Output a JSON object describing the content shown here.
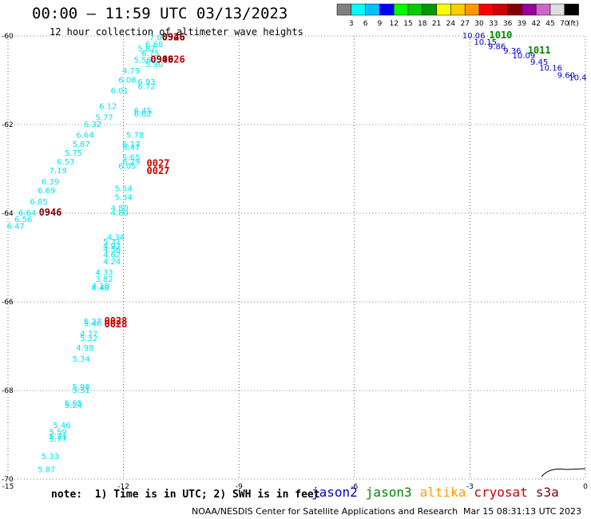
{
  "colorbar": {
    "colors": [
      "#808080",
      "#00ffff",
      "#00bfff",
      "#0000ff",
      "#00ff00",
      "#00cc00",
      "#009900",
      "#ffff00",
      "#ffcc00",
      "#ff9900",
      "#ff0000",
      "#cc0000",
      "#800000",
      "#990099",
      "#cc66cc",
      "#dddddd",
      "#000000"
    ],
    "ticks": [
      "3",
      "6",
      "9",
      "12",
      "15",
      "18",
      "21",
      "24",
      "27",
      "30",
      "33",
      "36",
      "39",
      "42",
      "45",
      "70"
    ],
    "unit": "(ft)"
  },
  "chart_data": {
    "type": "scatter",
    "title": "00:00 – 11:59 UTC 03/13/2023",
    "subtitle": "12 hour collection of altimeter wave heights",
    "xlim": [
      -15,
      0
    ],
    "ylim": [
      -70,
      -60
    ],
    "xticks": [
      "-15",
      "-12",
      "-9",
      "-6",
      "-3",
      "0"
    ],
    "yticks": [
      "-60",
      "-62",
      "-64",
      "-66",
      "-68",
      "-70"
    ],
    "grid": true,
    "series": [
      {
        "name": "cryosat",
        "color": "#00e5ee",
        "points": [
          {
            "x": -11.1,
            "y": -60.1,
            "label": "7.00"
          },
          {
            "x": -11.2,
            "y": -60.25,
            "label": "6.68"
          },
          {
            "x": -11.4,
            "y": -60.35,
            "label": "5.87"
          },
          {
            "x": -11.3,
            "y": -60.45,
            "label": "6.75"
          },
          {
            "x": -11.5,
            "y": -60.6,
            "label": "5.56"
          },
          {
            "x": -11.2,
            "y": -60.7,
            "label": "5.90"
          },
          {
            "x": -11.8,
            "y": -60.85,
            "label": "4.79"
          },
          {
            "x": -11.9,
            "y": -61.05,
            "label": "6.08"
          },
          {
            "x": -11.4,
            "y": -61.1,
            "label": "6.93"
          },
          {
            "x": -11.4,
            "y": -61.2,
            "label": "6.72"
          },
          {
            "x": -12.1,
            "y": -61.3,
            "label": "6.01"
          },
          {
            "x": -12.4,
            "y": -61.65,
            "label": "6.12"
          },
          {
            "x": -11.5,
            "y": -61.75,
            "label": "6.45"
          },
          {
            "x": -11.5,
            "y": -61.82,
            "label": "6.62"
          },
          {
            "x": -12.5,
            "y": -61.9,
            "label": "5.77"
          },
          {
            "x": -12.8,
            "y": -62.05,
            "label": "6.32"
          },
          {
            "x": -13.0,
            "y": -62.3,
            "label": "6.64"
          },
          {
            "x": -11.7,
            "y": -62.3,
            "label": "5.78"
          },
          {
            "x": -13.1,
            "y": -62.5,
            "label": "5.87"
          },
          {
            "x": -11.8,
            "y": -62.5,
            "label": "6.17"
          },
          {
            "x": -11.8,
            "y": -62.58,
            "label": "6.47"
          },
          {
            "x": -13.3,
            "y": -62.7,
            "label": "5.75"
          },
          {
            "x": -11.8,
            "y": -62.8,
            "label": "5.65"
          },
          {
            "x": -11.8,
            "y": -62.9,
            "label": "6.29"
          },
          {
            "x": -13.5,
            "y": -62.9,
            "label": "6.53"
          },
          {
            "x": -11.9,
            "y": -63.0,
            "label": "6.05"
          },
          {
            "x": -13.7,
            "y": -63.1,
            "label": "7.19"
          },
          {
            "x": -13.9,
            "y": -63.35,
            "label": "6.39"
          },
          {
            "x": -12.0,
            "y": -63.5,
            "label": "5.54"
          },
          {
            "x": -14.0,
            "y": -63.55,
            "label": "6.69"
          },
          {
            "x": -12.0,
            "y": -63.7,
            "label": "5.34"
          },
          {
            "x": -14.2,
            "y": -63.8,
            "label": "6.85"
          },
          {
            "x": -12.1,
            "y": -63.95,
            "label": "4.80"
          },
          {
            "x": -12.1,
            "y": -64.05,
            "label": "4.80"
          },
          {
            "x": -14.5,
            "y": -64.05,
            "label": "6.64"
          },
          {
            "x": -14.6,
            "y": -64.2,
            "label": "6.56"
          },
          {
            "x": -14.8,
            "y": -64.35,
            "label": "6.47"
          },
          {
            "x": -12.2,
            "y": -64.6,
            "label": "4.34"
          },
          {
            "x": -12.3,
            "y": -64.7,
            "label": "5.31"
          },
          {
            "x": -12.3,
            "y": -64.8,
            "label": "4.92"
          },
          {
            "x": -12.3,
            "y": -64.88,
            "label": "4.56"
          },
          {
            "x": -12.3,
            "y": -65.0,
            "label": "4.62"
          },
          {
            "x": -12.3,
            "y": -65.15,
            "label": "4.24"
          },
          {
            "x": -12.5,
            "y": -65.4,
            "label": "4.33"
          },
          {
            "x": -12.5,
            "y": -65.55,
            "label": "3.82"
          },
          {
            "x": -12.6,
            "y": -65.7,
            "label": "4.18"
          },
          {
            "x": -12.6,
            "y": -65.75,
            "label": "4.48"
          },
          {
            "x": -12.8,
            "y": -66.5,
            "label": "5.27"
          },
          {
            "x": -12.8,
            "y": -66.55,
            "label": "5.40"
          },
          {
            "x": -12.9,
            "y": -66.78,
            "label": "4.77"
          },
          {
            "x": -12.9,
            "y": -66.88,
            "label": "5.32"
          },
          {
            "x": -13.0,
            "y": -67.1,
            "label": "4.98"
          },
          {
            "x": -13.1,
            "y": -67.35,
            "label": "5.34"
          },
          {
            "x": -13.1,
            "y": -67.98,
            "label": "5.98"
          },
          {
            "x": -13.1,
            "y": -68.05,
            "label": "5.31"
          },
          {
            "x": -13.3,
            "y": -68.35,
            "label": "5.85"
          },
          {
            "x": -13.3,
            "y": -68.4,
            "label": "5.24"
          },
          {
            "x": -13.6,
            "y": -68.85,
            "label": "5.46"
          },
          {
            "x": -13.7,
            "y": -69.0,
            "label": "5.59"
          },
          {
            "x": -13.7,
            "y": -69.1,
            "label": "5.21"
          },
          {
            "x": -13.7,
            "y": -69.15,
            "label": "5.77"
          },
          {
            "x": -13.9,
            "y": -69.55,
            "label": "5.33"
          },
          {
            "x": -14.0,
            "y": -69.85,
            "label": "5.87"
          }
        ]
      },
      {
        "name": "jason2",
        "color": "#0000cc",
        "points": [
          {
            "x": -2.9,
            "y": -60.05,
            "label": "10.06"
          },
          {
            "x": -2.6,
            "y": -60.2,
            "label": "10.15"
          },
          {
            "x": -2.3,
            "y": -60.3,
            "label": "9.86"
          },
          {
            "x": -1.9,
            "y": -60.4,
            "label": "9.36"
          },
          {
            "x": -1.6,
            "y": -60.5,
            "label": "10.09"
          },
          {
            "x": -1.2,
            "y": -60.65,
            "label": "9.45"
          },
          {
            "x": -0.9,
            "y": -60.78,
            "label": "10.16"
          },
          {
            "x": -0.5,
            "y": -60.95,
            "label": "9.60"
          },
          {
            "x": -0.2,
            "y": -61.0,
            "label": "10.4"
          }
        ]
      }
    ],
    "time_labels": [
      {
        "x": -10.7,
        "y": -60.1,
        "label": "0926",
        "color": "#cc0000"
      },
      {
        "x": -10.7,
        "y": -60.1,
        "label": "0946",
        "color": "#800000"
      },
      {
        "x": -10.7,
        "y": -60.6,
        "label": "0926",
        "color": "#cc0000"
      },
      {
        "x": -11.0,
        "y": -60.6,
        "label": "0946",
        "color": "#800000"
      },
      {
        "x": -11.1,
        "y": -62.95,
        "label": "0027",
        "color": "#cc0000"
      },
      {
        "x": -11.1,
        "y": -63.12,
        "label": "0027",
        "color": "#cc0000"
      },
      {
        "x": -13.9,
        "y": -64.05,
        "label": "0946",
        "color": "#800000"
      },
      {
        "x": -12.2,
        "y": -66.5,
        "label": "0028",
        "color": "#cc0000"
      },
      {
        "x": -12.2,
        "y": -66.58,
        "label": "0028",
        "color": "#cc0000"
      },
      {
        "x": -2.2,
        "y": -60.05,
        "label": "1010",
        "color": "#008800"
      },
      {
        "x": -1.2,
        "y": -60.4,
        "label": "1011",
        "color": "#008800"
      }
    ]
  },
  "footer": {
    "note": "note:  1) Time is in UTC; 2) SWH is in feet",
    "satellites": [
      {
        "name": "jason2",
        "color": "#0000cc"
      },
      {
        "name": "jason3",
        "color": "#008800"
      },
      {
        "name": "altika",
        "color": "#ff9900"
      },
      {
        "name": "cryosat",
        "color": "#cc0000"
      },
      {
        "name": "s3a",
        "color": "#800000"
      }
    ],
    "credit": "NOAA/NESDIS Center for Satellite Applications and Research",
    "timestamp": "Mar 15 08:31:13 UTC 2023"
  }
}
